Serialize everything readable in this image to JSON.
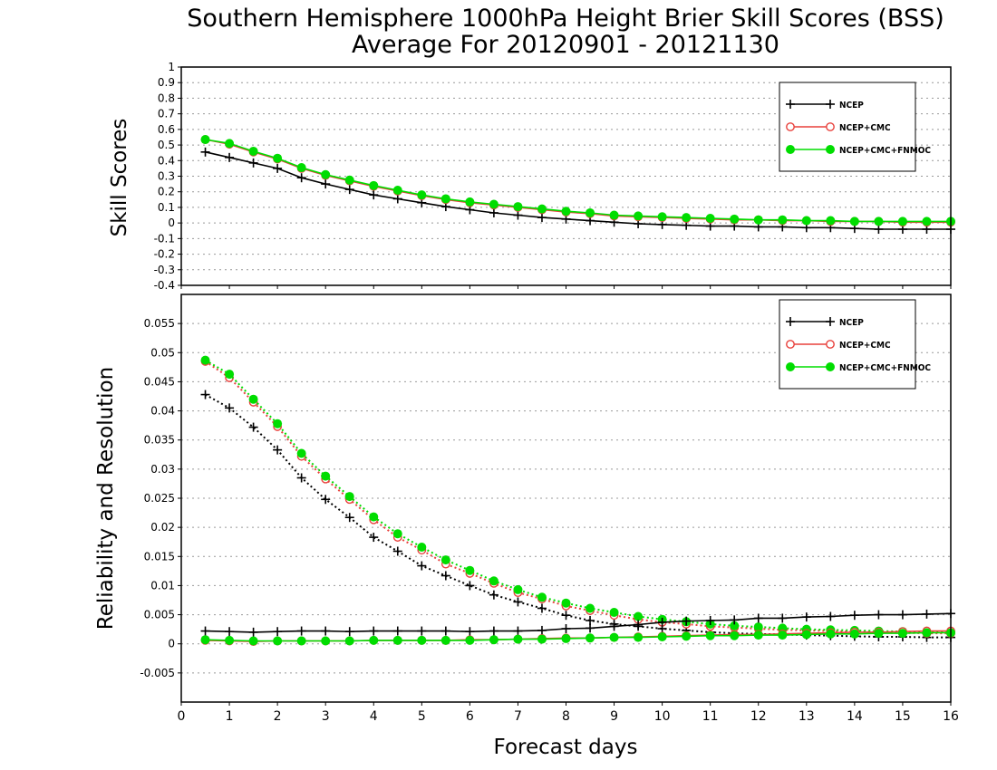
{
  "title_line1": "Southern Hemisphere 1000hPa Height Brier Skill Scores (BSS)",
  "title_line2": "Average For 20120901 - 20121130",
  "xlabel": "Forecast days",
  "colors": {
    "NCEP": "#000000",
    "NCEP+CMC": "#e8413c",
    "NCEP+CMC+FNMOC": "#00dd00"
  },
  "chart_data": [
    {
      "type": "line",
      "ylabel": "Skill Scores",
      "xlim": [
        0,
        16
      ],
      "ylim": [
        -0.4,
        1
      ],
      "grid": true,
      "legend_position": "top-right",
      "xticks": [
        "0",
        "1",
        "2",
        "3",
        "4",
        "5",
        "6",
        "7",
        "8",
        "9",
        "10",
        "11",
        "12",
        "13",
        "14",
        "15",
        "16"
      ],
      "yticks": [
        "1",
        "0.9",
        "0.8",
        "0.7",
        "0.6",
        "0.5",
        "0.4",
        "0.3",
        "0.2",
        "0.1",
        "0",
        "-0.1",
        "-0.2",
        "-0.3",
        "-0.4"
      ],
      "x": [
        0.5,
        1,
        1.5,
        2,
        2.5,
        3,
        3.5,
        4,
        4.5,
        5,
        5.5,
        6,
        6.5,
        7,
        7.5,
        8,
        8.5,
        9,
        9.5,
        10,
        10.5,
        11,
        11.5,
        12,
        12.5,
        13,
        13.5,
        14,
        14.5,
        15,
        15.5,
        16
      ],
      "series": [
        {
          "name": "NCEP",
          "marker": "plus",
          "style": "solid",
          "values": [
            0.455,
            0.42,
            0.385,
            0.35,
            0.29,
            0.25,
            0.215,
            0.18,
            0.155,
            0.13,
            0.105,
            0.085,
            0.065,
            0.05,
            0.035,
            0.025,
            0.015,
            0.005,
            -0.005,
            -0.01,
            -0.015,
            -0.02,
            -0.02,
            -0.025,
            -0.025,
            -0.03,
            -0.03,
            -0.035,
            -0.04,
            -0.04,
            -0.04,
            -0.04
          ]
        },
        {
          "name": "NCEP+CMC",
          "marker": "open-circle",
          "style": "solid",
          "values": [
            0.535,
            0.505,
            0.455,
            0.41,
            0.35,
            0.305,
            0.27,
            0.235,
            0.205,
            0.175,
            0.15,
            0.13,
            0.115,
            0.1,
            0.085,
            0.07,
            0.06,
            0.045,
            0.04,
            0.035,
            0.03,
            0.025,
            0.02,
            0.02,
            0.015,
            0.015,
            0.01,
            0.01,
            0.01,
            0.005,
            0.005,
            0.005
          ]
        },
        {
          "name": "NCEP+CMC+FNMOC",
          "marker": "filled-circle",
          "style": "solid",
          "values": [
            0.535,
            0.51,
            0.46,
            0.415,
            0.355,
            0.31,
            0.275,
            0.24,
            0.21,
            0.18,
            0.155,
            0.135,
            0.12,
            0.105,
            0.09,
            0.075,
            0.065,
            0.05,
            0.045,
            0.04,
            0.035,
            0.03,
            0.025,
            0.02,
            0.02,
            0.015,
            0.015,
            0.01,
            0.01,
            0.01,
            0.01,
            0.01
          ]
        }
      ]
    },
    {
      "type": "line",
      "ylabel": "Reliability and Resolution",
      "xlim": [
        0,
        16
      ],
      "ylim": [
        -0.01,
        0.06
      ],
      "grid": true,
      "legend_position": "top-right",
      "xticks": [
        "0",
        "1",
        "2",
        "3",
        "4",
        "5",
        "6",
        "7",
        "8",
        "9",
        "10",
        "11",
        "12",
        "13",
        "14",
        "15",
        "16"
      ],
      "yticks": [
        "0.055",
        "0.05",
        "0.045",
        "0.04",
        "0.035",
        "0.03",
        "0.025",
        "0.02",
        "0.015",
        "0.01",
        "0.005",
        "0",
        "-0.005"
      ],
      "x": [
        0.5,
        1,
        1.5,
        2,
        2.5,
        3,
        3.5,
        4,
        4.5,
        5,
        5.5,
        6,
        6.5,
        7,
        7.5,
        8,
        8.5,
        9,
        9.5,
        10,
        10.5,
        11,
        11.5,
        12,
        12.5,
        13,
        13.5,
        14,
        14.5,
        15,
        15.5,
        16
      ],
      "series": [
        {
          "name": "NCEP",
          "metric": "resolution",
          "marker": "plus",
          "style": "dotted",
          "values": [
            0.0428,
            0.0405,
            0.0372,
            0.0333,
            0.0285,
            0.0248,
            0.0217,
            0.0183,
            0.0159,
            0.0134,
            0.0117,
            0.01,
            0.0084,
            0.0072,
            0.0061,
            0.0049,
            0.004,
            0.0034,
            0.003,
            0.0026,
            0.0023,
            0.002,
            0.0018,
            0.0017,
            0.0016,
            0.0015,
            0.0014,
            0.0013,
            0.0012,
            0.0012,
            0.0011,
            0.0011
          ]
        },
        {
          "name": "NCEP+CMC",
          "metric": "resolution",
          "marker": "open-circle",
          "style": "dotted",
          "values": [
            0.0485,
            0.0457,
            0.0415,
            0.0373,
            0.0322,
            0.0283,
            0.0248,
            0.0213,
            0.0183,
            0.0161,
            0.0137,
            0.0121,
            0.0104,
            0.0088,
            0.0077,
            0.0065,
            0.0057,
            0.0049,
            0.0042,
            0.0037,
            0.0034,
            0.003,
            0.0028,
            0.0026,
            0.0024,
            0.0023,
            0.0022,
            0.0021,
            0.002,
            0.0019,
            0.0018,
            0.0018
          ]
        },
        {
          "name": "NCEP+CMC+FNMOC",
          "metric": "resolution",
          "marker": "filled-circle",
          "style": "dotted",
          "values": [
            0.0487,
            0.0463,
            0.042,
            0.0378,
            0.0327,
            0.0288,
            0.0253,
            0.0218,
            0.0189,
            0.0166,
            0.0144,
            0.0126,
            0.0108,
            0.0093,
            0.008,
            0.007,
            0.0061,
            0.0054,
            0.0047,
            0.0042,
            0.0038,
            0.0034,
            0.0031,
            0.0029,
            0.0027,
            0.0025,
            0.0024,
            0.0023,
            0.0022,
            0.0021,
            0.002,
            0.002
          ]
        },
        {
          "name": "NCEP",
          "metric": "reliability",
          "marker": "plus",
          "style": "solid",
          "values": [
            0.0022,
            0.0021,
            0.002,
            0.0021,
            0.0022,
            0.0022,
            0.0021,
            0.0022,
            0.0022,
            0.0022,
            0.0022,
            0.0021,
            0.0022,
            0.0022,
            0.0023,
            0.0026,
            0.0027,
            0.003,
            0.0033,
            0.0037,
            0.0039,
            0.004,
            0.0041,
            0.0044,
            0.0044,
            0.0046,
            0.0047,
            0.0049,
            0.005,
            0.005,
            0.0051,
            0.0052
          ]
        },
        {
          "name": "NCEP+CMC",
          "metric": "reliability",
          "marker": "open-circle",
          "style": "solid",
          "values": [
            0.0006,
            0.0005,
            0.0004,
            0.0005,
            0.0005,
            0.0005,
            0.0005,
            0.0006,
            0.0006,
            0.0006,
            0.0006,
            0.0007,
            0.0007,
            0.0008,
            0.0009,
            0.001,
            0.001,
            0.0011,
            0.0012,
            0.0013,
            0.0014,
            0.0015,
            0.0016,
            0.0016,
            0.0017,
            0.0018,
            0.0019,
            0.002,
            0.002,
            0.0021,
            0.0022,
            0.0022
          ]
        },
        {
          "name": "NCEP+CMC+FNMOC",
          "metric": "reliability",
          "marker": "filled-circle",
          "style": "solid",
          "values": [
            0.0007,
            0.0006,
            0.0005,
            0.0005,
            0.0005,
            0.0005,
            0.0005,
            0.0006,
            0.0006,
            0.0006,
            0.0006,
            0.0006,
            0.0007,
            0.0008,
            0.0008,
            0.0009,
            0.001,
            0.0011,
            0.0011,
            0.0012,
            0.0013,
            0.0014,
            0.0014,
            0.0015,
            0.0015,
            0.0016,
            0.0017,
            0.0017,
            0.0018,
            0.0018,
            0.0019,
            0.0019
          ]
        }
      ]
    }
  ]
}
